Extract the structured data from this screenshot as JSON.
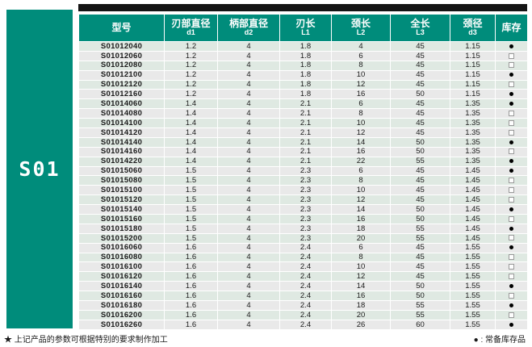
{
  "page": {
    "sidebar_label": "S01",
    "footer_note": "★ 上记产品的参数可根据特别的要求制作加工",
    "footer_legend": "● : 常备库存品"
  },
  "colors": {
    "accent_teal": "#008C7B",
    "top_bar": "#141414",
    "row_green": "#DFE9E2",
    "row_gray": "#E9E9E9"
  },
  "table": {
    "headers": [
      {
        "label": "型号",
        "sub": ""
      },
      {
        "label": "刃部直径",
        "sub": "d1"
      },
      {
        "label": "柄部直径",
        "sub": "d2"
      },
      {
        "label": "刃长",
        "sub": "L1"
      },
      {
        "label": "颈长",
        "sub": "L2"
      },
      {
        "label": "全长",
        "sub": "L3"
      },
      {
        "label": "颈径",
        "sub": "d3"
      },
      {
        "label": "库存",
        "sub": ""
      }
    ],
    "stock_symbols": {
      "in_stock": "●",
      "on_request": "□"
    },
    "rows": [
      [
        "S01012040",
        "1.2",
        "4",
        "1.8",
        "4",
        "45",
        "1.15",
        "●"
      ],
      [
        "S01012060",
        "1.2",
        "4",
        "1.8",
        "6",
        "45",
        "1.15",
        "□"
      ],
      [
        "S01012080",
        "1.2",
        "4",
        "1.8",
        "8",
        "45",
        "1.15",
        "□"
      ],
      [
        "S01012100",
        "1.2",
        "4",
        "1.8",
        "10",
        "45",
        "1.15",
        "●"
      ],
      [
        "S01012120",
        "1.2",
        "4",
        "1.8",
        "12",
        "45",
        "1.15",
        "□"
      ],
      [
        "S01012160",
        "1.2",
        "4",
        "1.8",
        "16",
        "50",
        "1.15",
        "●"
      ],
      [
        "S01014060",
        "1.4",
        "4",
        "2.1",
        "6",
        "45",
        "1.35",
        "●"
      ],
      [
        "S01014080",
        "1.4",
        "4",
        "2.1",
        "8",
        "45",
        "1.35",
        "□"
      ],
      [
        "S01014100",
        "1.4",
        "4",
        "2.1",
        "10",
        "45",
        "1.35",
        "□"
      ],
      [
        "S01014120",
        "1.4",
        "4",
        "2.1",
        "12",
        "45",
        "1.35",
        "□"
      ],
      [
        "S01014140",
        "1.4",
        "4",
        "2.1",
        "14",
        "50",
        "1.35",
        "●"
      ],
      [
        "S01014160",
        "1.4",
        "4",
        "2.1",
        "16",
        "50",
        "1.35",
        "□"
      ],
      [
        "S01014220",
        "1.4",
        "4",
        "2.1",
        "22",
        "55",
        "1.35",
        "●"
      ],
      [
        "S01015060",
        "1.5",
        "4",
        "2.3",
        "6",
        "45",
        "1.45",
        "●"
      ],
      [
        "S01015080",
        "1.5",
        "4",
        "2.3",
        "8",
        "45",
        "1.45",
        "□"
      ],
      [
        "S01015100",
        "1.5",
        "4",
        "2.3",
        "10",
        "45",
        "1.45",
        "□"
      ],
      [
        "S01015120",
        "1.5",
        "4",
        "2.3",
        "12",
        "45",
        "1.45",
        "□"
      ],
      [
        "S01015140",
        "1.5",
        "4",
        "2.3",
        "14",
        "50",
        "1.45",
        "●"
      ],
      [
        "S01015160",
        "1.5",
        "4",
        "2.3",
        "16",
        "50",
        "1.45",
        "□"
      ],
      [
        "S01015180",
        "1.5",
        "4",
        "2.3",
        "18",
        "55",
        "1.45",
        "●"
      ],
      [
        "S01015200",
        "1.5",
        "4",
        "2.3",
        "20",
        "55",
        "1.45",
        "□"
      ],
      [
        "S01016060",
        "1.6",
        "4",
        "2.4",
        "6",
        "45",
        "1.55",
        "●"
      ],
      [
        "S01016080",
        "1.6",
        "4",
        "2.4",
        "8",
        "45",
        "1.55",
        "□"
      ],
      [
        "S01016100",
        "1.6",
        "4",
        "2.4",
        "10",
        "45",
        "1.55",
        "□"
      ],
      [
        "S01016120",
        "1.6",
        "4",
        "2.4",
        "12",
        "45",
        "1.55",
        "□"
      ],
      [
        "S01016140",
        "1.6",
        "4",
        "2.4",
        "14",
        "50",
        "1.55",
        "●"
      ],
      [
        "S01016160",
        "1.6",
        "4",
        "2.4",
        "16",
        "50",
        "1.55",
        "□"
      ],
      [
        "S01016180",
        "1.6",
        "4",
        "2.4",
        "18",
        "55",
        "1.55",
        "●"
      ],
      [
        "S01016200",
        "1.6",
        "4",
        "2.4",
        "20",
        "55",
        "1.55",
        "□"
      ],
      [
        "S01016260",
        "1.6",
        "4",
        "2.4",
        "26",
        "60",
        "1.55",
        "●"
      ]
    ]
  }
}
